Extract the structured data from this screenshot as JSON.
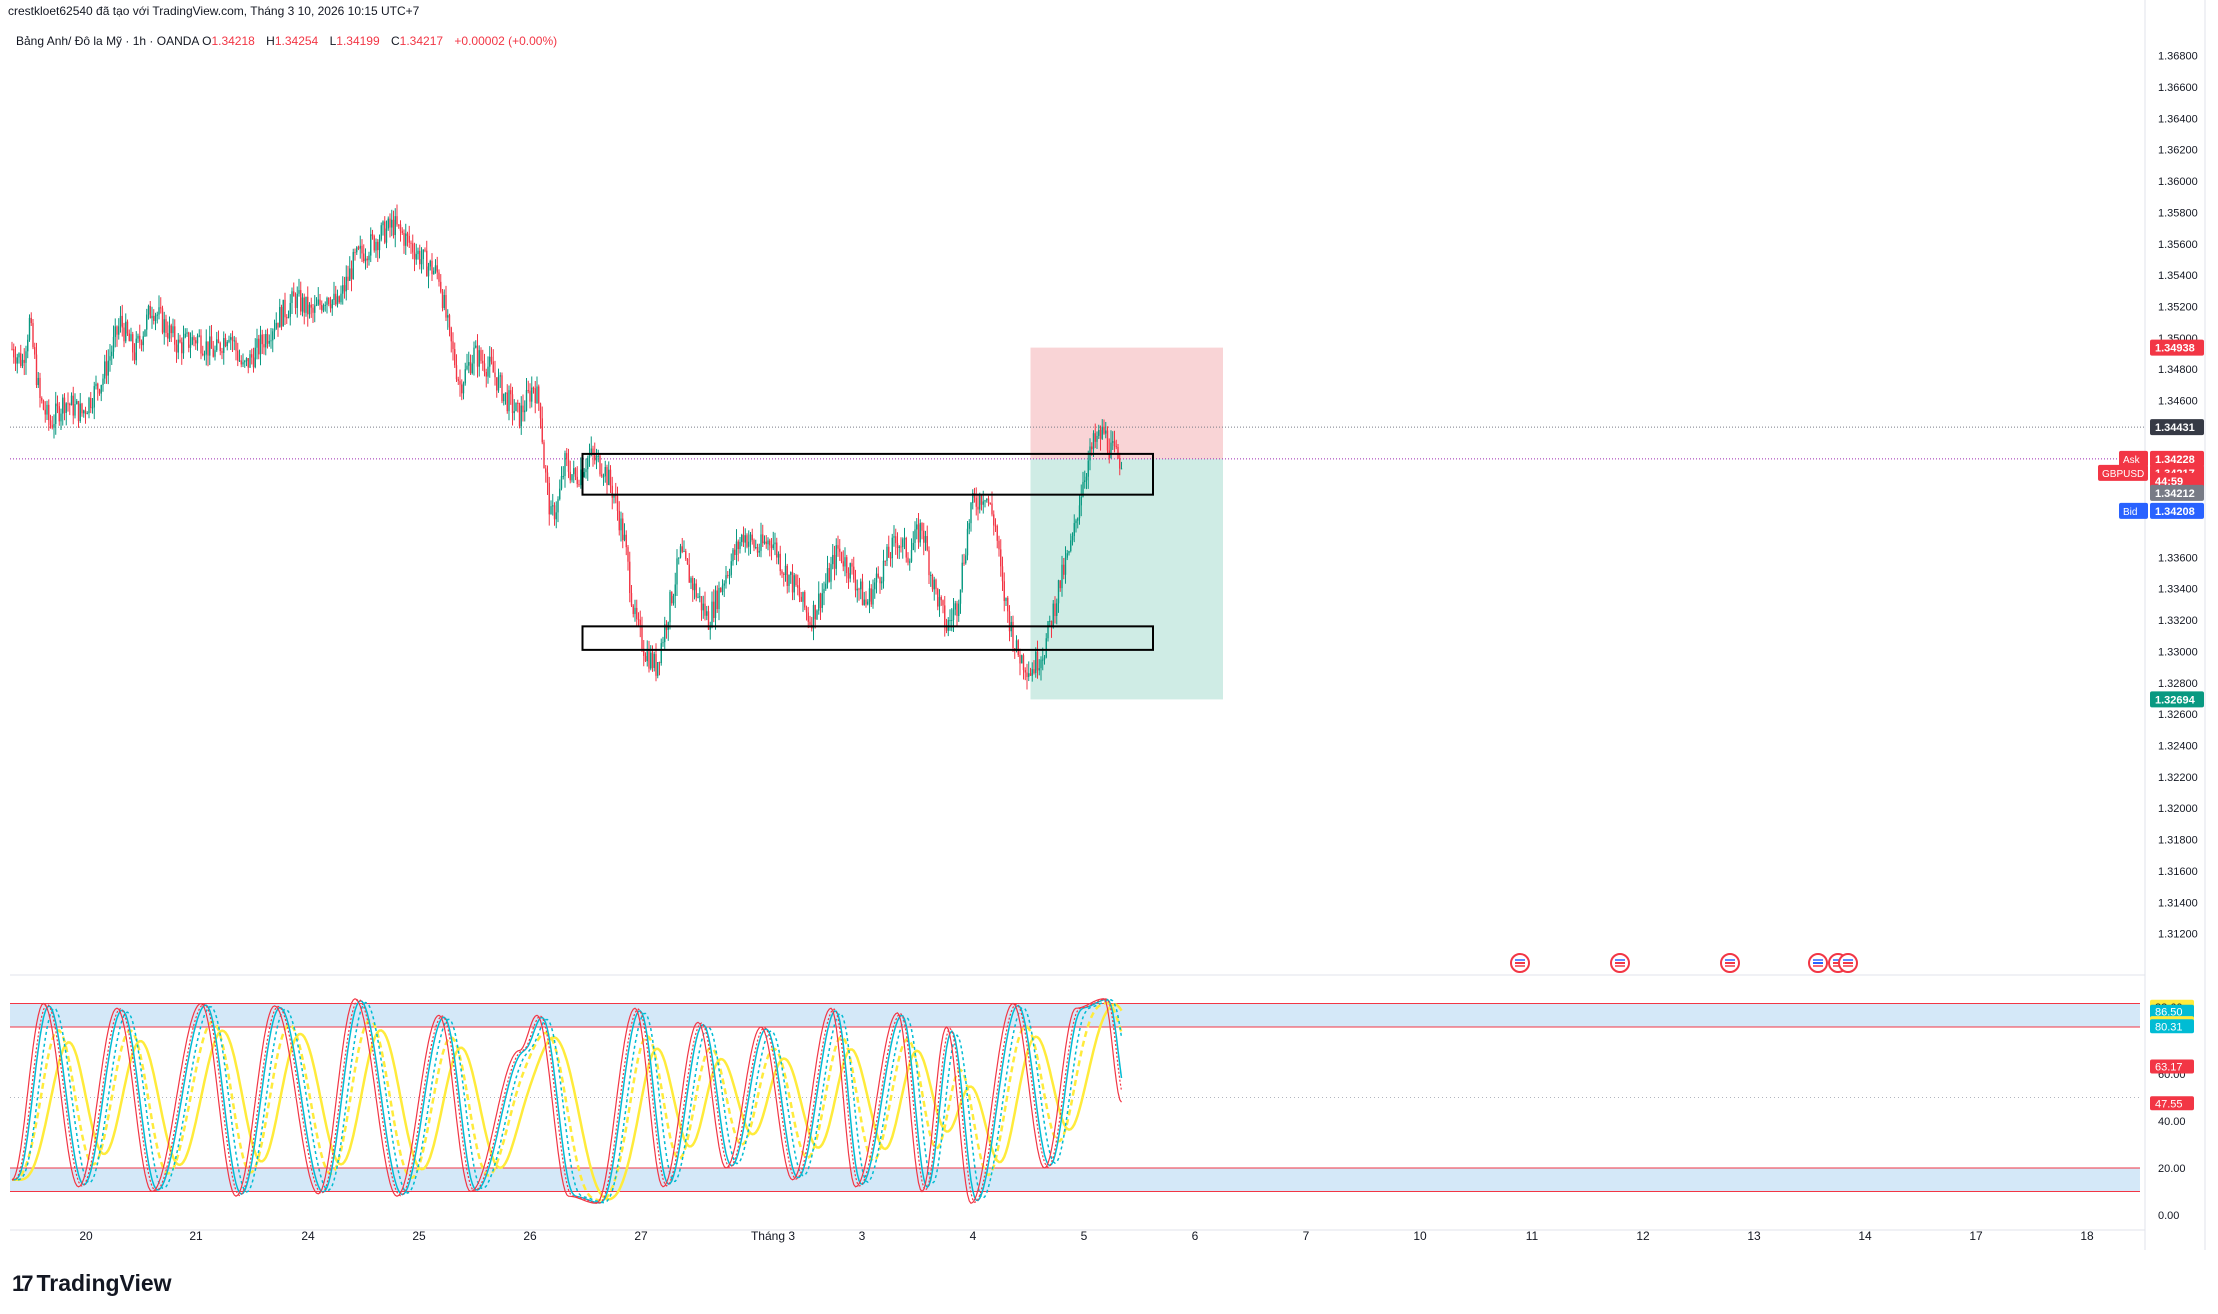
{
  "header": {
    "text": "crestkloet62540 đã tạo với TradingView.com, Tháng 3 10, 2026 10:15 UTC+7"
  },
  "symbol": {
    "name": "Bảng Anh/ Đô la Mỹ · 1h · OANDA",
    "o_label": "O",
    "o": "1.34218",
    "h_label": "H",
    "h": "1.34254",
    "l_label": "L",
    "l": "1.34199",
    "c_label": "C",
    "c": "1.34217",
    "change": "+0.00002 (+0.00%)"
  },
  "logo": {
    "text": "TradingView",
    "mark": "17"
  },
  "colors": {
    "up": "#089981",
    "down": "#f23645",
    "box": "#000000",
    "stop_zone": "#f7c5c8",
    "target_zone": "#bfe6dc",
    "band": "#cfe6f7",
    "band_line": "#f23645",
    "k_fast": "#f23645",
    "d_fast": "#f23645",
    "k_mid": "#00bcd4",
    "k_slow": "#ffeb3b"
  },
  "chart_data": [
    {
      "type": "candlestick",
      "title": "",
      "y_range": [
        1.31,
        1.369
      ],
      "y_ticks": [
        "1.36800",
        "1.36600",
        "1.36400",
        "1.36200",
        "1.36000",
        "1.35800",
        "1.35600",
        "1.35400",
        "1.35200",
        "1.35000",
        "1.34800",
        "1.34600",
        "1.33600",
        "1.33400",
        "1.33200",
        "1.33000",
        "1.32800",
        "1.32600",
        "1.32400",
        "1.32200",
        "1.32000",
        "1.31800",
        "1.31600",
        "1.31400",
        "1.31200"
      ],
      "x_labels": [
        "20",
        "21",
        "24",
        "25",
        "26",
        "27",
        "Tháng 3",
        "3",
        "4",
        "5",
        "6",
        "7",
        "10",
        "11",
        "12",
        "13",
        "14",
        "17",
        "18"
      ],
      "close_path": [
        [
          0,
          1.3493
        ],
        [
          6,
          1.3485
        ],
        [
          10,
          1.351
        ],
        [
          16,
          1.346
        ],
        [
          22,
          1.3445
        ],
        [
          30,
          1.346
        ],
        [
          40,
          1.3452
        ],
        [
          52,
          1.3475
        ],
        [
          62,
          1.351
        ],
        [
          70,
          1.349
        ],
        [
          80,
          1.352
        ],
        [
          86,
          1.351
        ],
        [
          95,
          1.3495
        ],
        [
          106,
          1.35
        ],
        [
          116,
          1.349
        ],
        [
          124,
          1.3505
        ],
        [
          132,
          1.348
        ],
        [
          140,
          1.3492
        ],
        [
          150,
          1.351
        ],
        [
          162,
          1.3525
        ],
        [
          172,
          1.3515
        ],
        [
          180,
          1.3528
        ],
        [
          186,
          1.352
        ],
        [
          196,
          1.355
        ],
        [
          210,
          1.3565
        ],
        [
          218,
          1.3572
        ],
        [
          226,
          1.3562
        ],
        [
          236,
          1.3548
        ],
        [
          244,
          1.354
        ],
        [
          250,
          1.35
        ],
        [
          256,
          1.347
        ],
        [
          264,
          1.349
        ],
        [
          274,
          1.348
        ],
        [
          282,
          1.3462
        ],
        [
          290,
          1.345
        ],
        [
          298,
          1.347
        ],
        [
          302,
          1.3455
        ],
        [
          304,
          1.342
        ],
        [
          308,
          1.3385
        ],
        [
          312,
          1.3395
        ],
        [
          316,
          1.342
        ],
        [
          322,
          1.341
        ],
        [
          330,
          1.3425
        ],
        [
          338,
          1.3418
        ],
        [
          344,
          1.34
        ],
        [
          350,
          1.337
        ],
        [
          356,
          1.332
        ],
        [
          362,
          1.33
        ],
        [
          368,
          1.329
        ],
        [
          374,
          1.332
        ],
        [
          382,
          1.3362
        ],
        [
          390,
          1.334
        ],
        [
          398,
          1.332
        ],
        [
          408,
          1.335
        ],
        [
          418,
          1.3375
        ],
        [
          426,
          1.3365
        ],
        [
          434,
          1.3372
        ],
        [
          440,
          1.3355
        ],
        [
          448,
          1.334
        ],
        [
          456,
          1.332
        ],
        [
          464,
          1.334
        ],
        [
          472,
          1.3365
        ],
        [
          480,
          1.335
        ],
        [
          488,
          1.333
        ],
        [
          496,
          1.335
        ],
        [
          506,
          1.3372
        ],
        [
          512,
          1.3362
        ],
        [
          520,
          1.338
        ],
        [
          526,
          1.3345
        ],
        [
          534,
          1.3315
        ],
        [
          540,
          1.333
        ],
        [
          548,
          1.3392
        ],
        [
          556,
          1.3402
        ],
        [
          562,
          1.338
        ],
        [
          566,
          1.334
        ],
        [
          574,
          1.33
        ],
        [
          582,
          1.3288
        ],
        [
          590,
          1.3302
        ],
        [
          598,
          1.334
        ],
        [
          606,
          1.337
        ],
        [
          612,
          1.341
        ],
        [
          618,
          1.3432
        ],
        [
          624,
          1.344
        ],
        [
          628,
          1.3428
        ],
        [
          632,
          1.3423
        ],
        [
          634,
          1.3422
        ]
      ],
      "price_labels": [
        {
          "label": "",
          "value": "1.34938",
          "color": "#f23645"
        },
        {
          "label": "",
          "value": "1.34431",
          "color": "#363a45"
        },
        {
          "label": "Ask",
          "value": "1.34228",
          "color": "#f23645"
        },
        {
          "label": "GBPUSD",
          "value": "1.34217",
          "color": "#f23645"
        },
        {
          "label": "",
          "value": "44:59",
          "color": "#f23645"
        },
        {
          "label": "",
          "value": "1.34212",
          "color": "#787b86"
        },
        {
          "label": "Bid",
          "value": "1.34208",
          "color": "#2962ff"
        },
        {
          "label": "",
          "value": "1.32694",
          "color": "#089981"
        }
      ],
      "position": {
        "entry": 1.34228,
        "stop": 1.34938,
        "target": 1.32694
      },
      "resistance_box": [
        1.34,
        1.3426
      ],
      "support_box": [
        1.3301,
        1.3316
      ],
      "dotted_levels": [
        1.34431,
        1.34228
      ]
    },
    {
      "type": "line",
      "title": "",
      "y_range": [
        0,
        100
      ],
      "y_ticks": [
        "60.00",
        "40.00",
        "20.00",
        "0.00"
      ],
      "bands": [
        [
          80,
          90
        ],
        [
          10,
          20
        ]
      ],
      "value_labels": [
        {
          "value": "88.60",
          "color": "#ffeb3b"
        },
        {
          "value": "86.50",
          "color": "#00bcd4"
        },
        {
          "value": "81.65",
          "color": "#ffeb3b"
        },
        {
          "value": "80.31",
          "color": "#00bcd4"
        },
        {
          "value": "63.17",
          "color": "#f23645"
        },
        {
          "value": "47.55",
          "color": "#f23645"
        }
      ],
      "series_last": {
        "fast": 47.55,
        "fast_signal": 63.17,
        "mid": 80.31,
        "mid_signal": 86.5,
        "slow": 81.65,
        "slow_signal": 88.6
      },
      "cycle_peaks": [
        [
          0,
          15
        ],
        [
          18,
          90
        ],
        [
          38,
          12
        ],
        [
          60,
          88
        ],
        [
          80,
          10
        ],
        [
          108,
          90
        ],
        [
          128,
          8
        ],
        [
          150,
          89
        ],
        [
          175,
          9
        ],
        [
          196,
          92
        ],
        [
          220,
          8
        ],
        [
          244,
          85
        ],
        [
          262,
          10
        ],
        [
          290,
          70
        ],
        [
          300,
          85
        ],
        [
          318,
          8
        ],
        [
          334,
          5
        ],
        [
          356,
          88
        ],
        [
          372,
          12
        ],
        [
          392,
          82
        ],
        [
          408,
          20
        ],
        [
          428,
          80
        ],
        [
          446,
          15
        ],
        [
          468,
          88
        ],
        [
          482,
          12
        ],
        [
          506,
          86
        ],
        [
          520,
          10
        ],
        [
          534,
          80
        ],
        [
          548,
          5
        ],
        [
          572,
          90
        ],
        [
          590,
          20
        ],
        [
          608,
          88
        ],
        [
          624,
          92
        ],
        [
          634,
          48
        ]
      ]
    }
  ],
  "events": [
    "us",
    "us",
    "us",
    "uk",
    "us",
    "us"
  ]
}
